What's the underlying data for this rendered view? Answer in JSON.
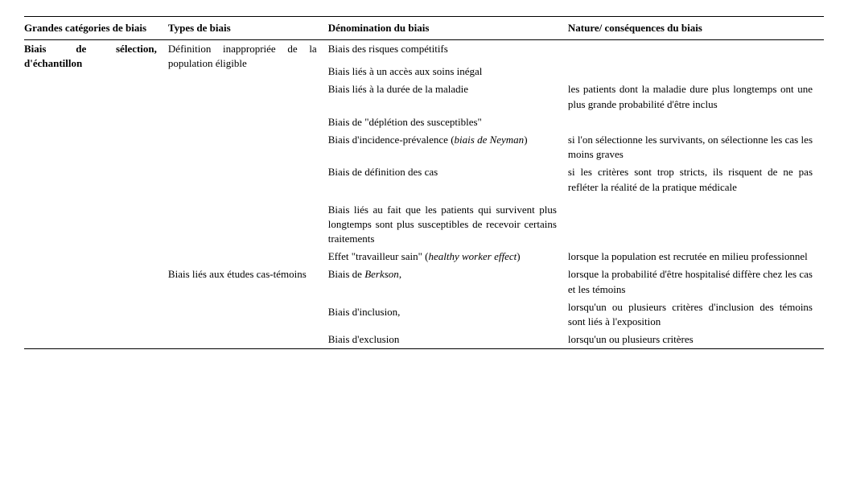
{
  "headers": {
    "col1": "Grandes catégories de biais",
    "col2": "Types de biais",
    "col3": "Dénomination du biais",
    "col4": "Nature/ conséquences du biais"
  },
  "category": "Biais de sélection, d'échantillon",
  "type1": "Définition inappropriée de la population éligible",
  "type2": "Biais liés aux études cas-témoins",
  "rows": {
    "r1c3": "Biais des risques compétitifs",
    "r2c3": "Biais liés à un accès aux soins inégal",
    "r3c3": "Biais liés à la durée de la maladie",
    "r3c4": "les patients dont la maladie dure plus longtemps ont une plus grande probabilité d'être inclus",
    "r4c3": "Biais de \"déplétion des susceptibles\"",
    "r5c3a": "Biais d'incidence-prévalence (",
    "r5c3b": "biais de Neyman",
    "r5c3c": ")",
    "r5c4": "si l'on sélectionne les survivants, on sélectionne les cas les moins graves",
    "r6c3": "Biais de définition des cas",
    "r6c4": "si les critères sont trop stricts, ils risquent de ne pas refléter la réalité de la pratique médicale",
    "r7c3": "Biais liés au fait que les patients qui survivent plus longtemps sont plus susceptibles de recevoir certains traitements",
    "r8c3a": "Effet \"travailleur sain\" (",
    "r8c3b": "healthy worker effect",
    "r8c3c": ")",
    "r8c4": "lorsque la population est recrutée en milieu professionnel",
    "r9c3a": "Biais de ",
    "r9c3b": "Berkson",
    "r9c3c": ",",
    "r9c4": "lorsque la probabilité d'être hospitalisé diffère chez les cas et les témoins",
    "r10c3": "Biais d'inclusion,",
    "r10c4": "lorsqu'un ou plusieurs critères d'inclusion des témoins sont liés à l'exposition",
    "r11c3": "Biais d'exclusion",
    "r11c4": "lorsqu'un ou plusieurs critères"
  }
}
